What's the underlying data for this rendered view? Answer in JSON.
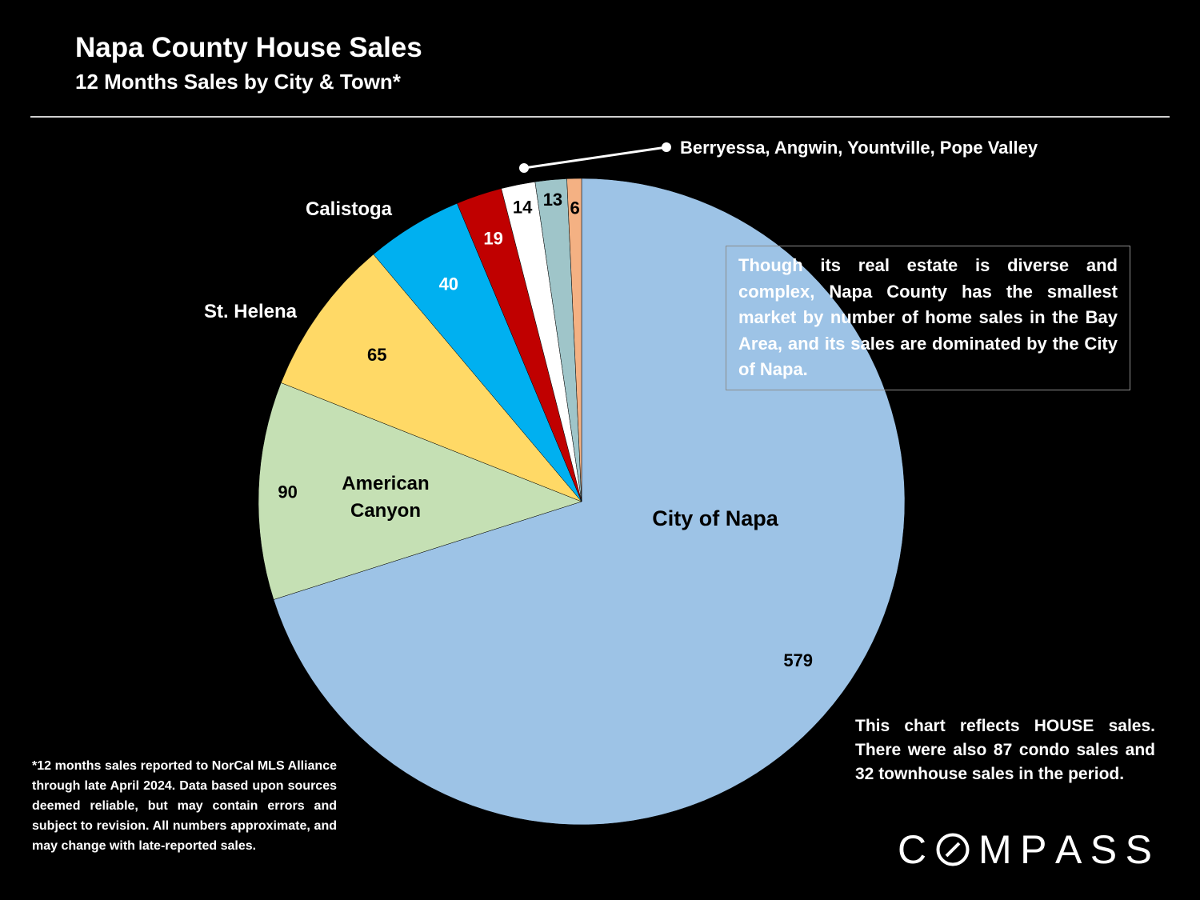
{
  "title": "Napa County House Sales",
  "subtitle": "12 Months Sales by City & Town*",
  "callout_text": "Though its real estate is diverse and complex, Napa County has the smallest market by number of home sales in the Bay Area, and its sales are dominated by the City of Napa.",
  "note_text": "This chart reflects HOUSE sales. There were also 87 condo sales and 32 townhouse sales in the period.",
  "footnote_text": "*12 months sales reported to NorCal MLS Alliance through late April 2024. Data based upon sources deemed reliable, but may contain errors and subject to revision. All numbers approximate, and may change with late-reported sales.",
  "logo": {
    "text": "COMPASS",
    "letters": [
      "C",
      "O",
      "M",
      "P",
      "A",
      "S",
      "S"
    ]
  },
  "chart_data": {
    "type": "pie",
    "direction": "clockwise from top",
    "slices": [
      {
        "label": "City of Napa",
        "value": 579,
        "color": "#9DC3E6"
      },
      {
        "label": "American Canyon",
        "value": 90,
        "color": "#C5E0B4"
      },
      {
        "label": "St. Helena",
        "value": 65,
        "color": "#FFD966"
      },
      {
        "label": "Calistoga",
        "value": 40,
        "color": "#00B0F0"
      },
      {
        "label": "",
        "value": 19,
        "color": "#C00000"
      },
      {
        "label": "",
        "value": 14,
        "color": "#FFFFFF"
      },
      {
        "label": "",
        "value": 13,
        "color": "#9FC5C9"
      },
      {
        "label": "",
        "value": 6,
        "color": "#F4B183"
      }
    ],
    "small_slices_label": "Berryessa, Angwin, Yountville, Pope Valley"
  }
}
